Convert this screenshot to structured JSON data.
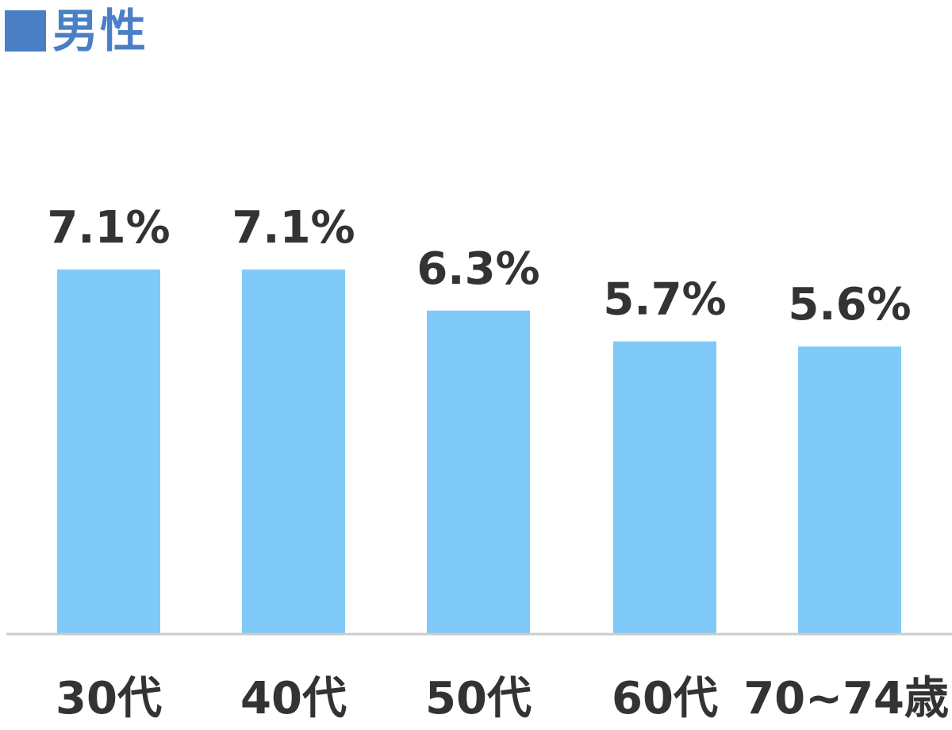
{
  "colors": {
    "accent": "#4a7fc6",
    "bar": "#80caf9",
    "text": "#333333",
    "axis": "#cccccc"
  },
  "chart_data": {
    "type": "bar",
    "title": "男性",
    "categories": [
      "30代",
      "40代",
      "50代",
      "60代",
      "70~74歳"
    ],
    "values": [
      7.1,
      7.1,
      6.3,
      5.7,
      5.6
    ],
    "value_labels": [
      "7.1%",
      "7.1%",
      "6.3%",
      "5.7%",
      "5.6%"
    ],
    "unit": "%",
    "xlabel": "",
    "ylabel": "",
    "ylim": [
      0,
      7.1
    ],
    "grid": false,
    "legend": "none"
  }
}
